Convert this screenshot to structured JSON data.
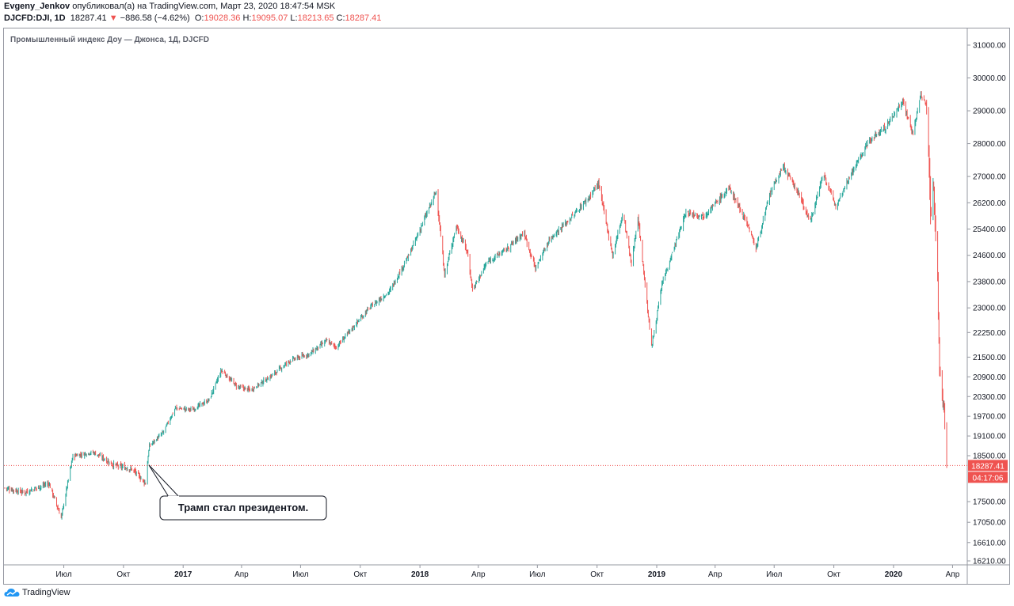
{
  "header": {
    "author": "Evgeny_Jenkov",
    "published": "опубликовал(а) на TradingView.com, Март 23, 2020 18:47:54 MSK",
    "symbol": "DJCFD:DJI, 1D",
    "last": "18287.41",
    "change_arrow": "▼",
    "change": "−886.58 (−4.62%)",
    "o_label": "O:",
    "o_val": "19028.36",
    "h_label": "H:",
    "h_val": "19095.07",
    "l_label": "L:",
    "l_val": "18213.65",
    "c_label": "C:",
    "c_val": "18287.41"
  },
  "footer": {
    "logo_text": "TradingView"
  },
  "colors": {
    "up": "#26a69a",
    "down": "#ef5350",
    "axis": "#131722",
    "border": "#9598a1"
  },
  "chart_data": {
    "type": "candlestick",
    "title": "Промышленный индекс Доу — Джонса, 1Д, DJCFD",
    "ylim": [
      16000,
      31400
    ],
    "y_ticks": [
      31000,
      30000,
      29000,
      28000,
      27000,
      26200,
      25400,
      24600,
      23800,
      23000,
      22250,
      21500,
      20900,
      20300,
      19700,
      19100,
      18500,
      17500,
      17050,
      16610,
      16210
    ],
    "y_tick_labels": [
      "31000.00",
      "30000.00",
      "29000.00",
      "28000.00",
      "27000.00",
      "26200.00",
      "25400.00",
      "24600.00",
      "23800.00",
      "23000.00",
      "22250.00",
      "21500.00",
      "20900.00",
      "20300.00",
      "19700.00",
      "19100.00",
      "18500.00",
      "17500.00",
      "17050.00",
      "16610.00",
      "16210.00"
    ],
    "x_range": [
      "2016-04-01",
      "2020-04-20"
    ],
    "x_ticks": [
      {
        "date": "2016-07-01",
        "label": "Июл",
        "bold": false
      },
      {
        "date": "2016-10-01",
        "label": "Окт",
        "bold": false
      },
      {
        "date": "2017-01-01",
        "label": "2017",
        "bold": true
      },
      {
        "date": "2017-04-01",
        "label": "Апр",
        "bold": false
      },
      {
        "date": "2017-07-01",
        "label": "Июл",
        "bold": false
      },
      {
        "date": "2017-10-01",
        "label": "Окт",
        "bold": false
      },
      {
        "date": "2018-01-01",
        "label": "2018",
        "bold": true
      },
      {
        "date": "2018-04-01",
        "label": "Апр",
        "bold": false
      },
      {
        "date": "2018-07-01",
        "label": "Июл",
        "bold": false
      },
      {
        "date": "2018-10-01",
        "label": "Окт",
        "bold": false
      },
      {
        "date": "2019-01-01",
        "label": "2019",
        "bold": true
      },
      {
        "date": "2019-04-01",
        "label": "Апр",
        "bold": false
      },
      {
        "date": "2019-07-01",
        "label": "Июл",
        "bold": false
      },
      {
        "date": "2019-10-01",
        "label": "Окт",
        "bold": false
      },
      {
        "date": "2020-01-01",
        "label": "2020",
        "bold": true
      },
      {
        "date": "2020-04-01",
        "label": "Апр",
        "bold": false
      }
    ],
    "price_line": {
      "value": 18287.41,
      "label": "18287.41",
      "timer": "04:17:06"
    },
    "annotation": {
      "text": "Трамп стал президентом.",
      "date": "2016-11-09",
      "value": 18300
    },
    "close_series": [
      {
        "date": "2016-04-01",
        "close": 17800
      },
      {
        "date": "2016-05-01",
        "close": 17700
      },
      {
        "date": "2016-06-08",
        "close": 17900
      },
      {
        "date": "2016-06-27",
        "close": 17150
      },
      {
        "date": "2016-07-15",
        "close": 18500
      },
      {
        "date": "2016-08-15",
        "close": 18600
      },
      {
        "date": "2016-09-15",
        "close": 18300
      },
      {
        "date": "2016-10-15",
        "close": 18200
      },
      {
        "date": "2016-11-04",
        "close": 17900
      },
      {
        "date": "2016-11-10",
        "close": 18800
      },
      {
        "date": "2016-12-01",
        "close": 19200
      },
      {
        "date": "2016-12-20",
        "close": 19950
      },
      {
        "date": "2017-01-15",
        "close": 19900
      },
      {
        "date": "2017-02-10",
        "close": 20200
      },
      {
        "date": "2017-03-01",
        "close": 21100
      },
      {
        "date": "2017-03-25",
        "close": 20600
      },
      {
        "date": "2017-04-15",
        "close": 20500
      },
      {
        "date": "2017-05-15",
        "close": 20900
      },
      {
        "date": "2017-06-15",
        "close": 21400
      },
      {
        "date": "2017-07-15",
        "close": 21600
      },
      {
        "date": "2017-08-10",
        "close": 22000
      },
      {
        "date": "2017-08-25",
        "close": 21800
      },
      {
        "date": "2017-09-15",
        "close": 22300
      },
      {
        "date": "2017-10-15",
        "close": 23000
      },
      {
        "date": "2017-11-15",
        "close": 23500
      },
      {
        "date": "2017-12-15",
        "close": 24600
      },
      {
        "date": "2018-01-10",
        "close": 25800
      },
      {
        "date": "2018-01-26",
        "close": 26550
      },
      {
        "date": "2018-02-08",
        "close": 24000
      },
      {
        "date": "2018-02-26",
        "close": 25500
      },
      {
        "date": "2018-03-15",
        "close": 24700
      },
      {
        "date": "2018-03-23",
        "close": 23550
      },
      {
        "date": "2018-04-15",
        "close": 24400
      },
      {
        "date": "2018-05-15",
        "close": 24800
      },
      {
        "date": "2018-06-10",
        "close": 25300
      },
      {
        "date": "2018-06-28",
        "close": 24200
      },
      {
        "date": "2018-07-20",
        "close": 25100
      },
      {
        "date": "2018-08-20",
        "close": 25700
      },
      {
        "date": "2018-09-20",
        "close": 26400
      },
      {
        "date": "2018-10-03",
        "close": 26800
      },
      {
        "date": "2018-10-25",
        "close": 24600
      },
      {
        "date": "2018-11-10",
        "close": 25900
      },
      {
        "date": "2018-11-23",
        "close": 24300
      },
      {
        "date": "2018-12-03",
        "close": 25800
      },
      {
        "date": "2018-12-24",
        "close": 21800
      },
      {
        "date": "2019-01-10",
        "close": 23800
      },
      {
        "date": "2019-02-15",
        "close": 25900
      },
      {
        "date": "2019-03-15",
        "close": 25800
      },
      {
        "date": "2019-04-23",
        "close": 26650
      },
      {
        "date": "2019-05-20",
        "close": 25600
      },
      {
        "date": "2019-06-03",
        "close": 24800
      },
      {
        "date": "2019-06-25",
        "close": 26500
      },
      {
        "date": "2019-07-15",
        "close": 27300
      },
      {
        "date": "2019-08-10",
        "close": 26400
      },
      {
        "date": "2019-08-25",
        "close": 25600
      },
      {
        "date": "2019-09-15",
        "close": 27100
      },
      {
        "date": "2019-10-03",
        "close": 26100
      },
      {
        "date": "2019-10-25",
        "close": 27000
      },
      {
        "date": "2019-11-25",
        "close": 28100
      },
      {
        "date": "2019-12-20",
        "close": 28500
      },
      {
        "date": "2020-01-15",
        "close": 29300
      },
      {
        "date": "2020-01-31",
        "close": 28300
      },
      {
        "date": "2020-02-12",
        "close": 29500
      },
      {
        "date": "2020-02-20",
        "close": 29200
      },
      {
        "date": "2020-02-24",
        "close": 27900
      },
      {
        "date": "2020-02-27",
        "close": 25800
      },
      {
        "date": "2020-03-03",
        "close": 26700
      },
      {
        "date": "2020-03-09",
        "close": 23800
      },
      {
        "date": "2020-03-12",
        "close": 21200
      },
      {
        "date": "2020-03-16",
        "close": 20200
      },
      {
        "date": "2020-03-19",
        "close": 19900
      },
      {
        "date": "2020-03-23",
        "close": 18287
      }
    ]
  }
}
